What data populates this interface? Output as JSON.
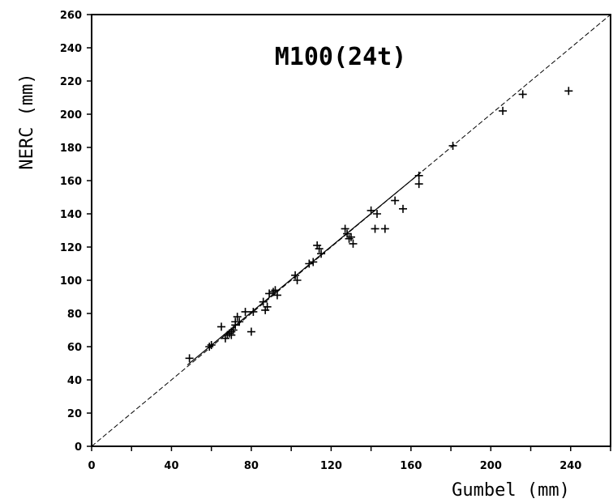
{
  "chart_data": {
    "type": "scatter",
    "title": "M100(24t)",
    "xlabel": "Gumbel (mm)",
    "ylabel": "NERC (mm)",
    "xlim": [
      0,
      260
    ],
    "ylim": [
      0,
      260
    ],
    "xticks": [
      0,
      40,
      80,
      120,
      160,
      200,
      240
    ],
    "yticks": [
      0,
      20,
      40,
      60,
      80,
      100,
      120,
      140,
      160,
      180,
      200,
      220,
      240,
      260
    ],
    "grid": false,
    "reference_line": {
      "style": "dashed",
      "from": [
        0,
        0
      ],
      "to": [
        260,
        260
      ]
    },
    "fit_line": {
      "style": "solid",
      "from": [
        48,
        49
      ],
      "to": [
        165,
        165
      ]
    },
    "series": [
      {
        "marker": "+",
        "x": [
          49,
          59,
          60,
          65,
          67,
          68,
          69,
          70,
          70,
          71,
          72,
          72,
          73,
          74,
          77,
          80,
          81,
          86,
          87,
          88,
          89,
          91,
          92,
          93,
          102,
          103,
          109,
          111,
          113,
          114,
          115,
          127,
          128,
          129,
          130,
          131,
          140,
          142,
          143,
          147,
          152,
          156,
          164,
          164,
          181,
          206,
          216,
          239
        ],
        "y": [
          53,
          60,
          61,
          72,
          65,
          67,
          68,
          67,
          69,
          70,
          73,
          75,
          78,
          75,
          81,
          69,
          81,
          87,
          82,
          84,
          92,
          93,
          94,
          91,
          103,
          100,
          110,
          111,
          121,
          119,
          116,
          131,
          128,
          125,
          126,
          122,
          142,
          131,
          140,
          131,
          148,
          143,
          163,
          158,
          181,
          202,
          212,
          214
        ]
      }
    ]
  }
}
